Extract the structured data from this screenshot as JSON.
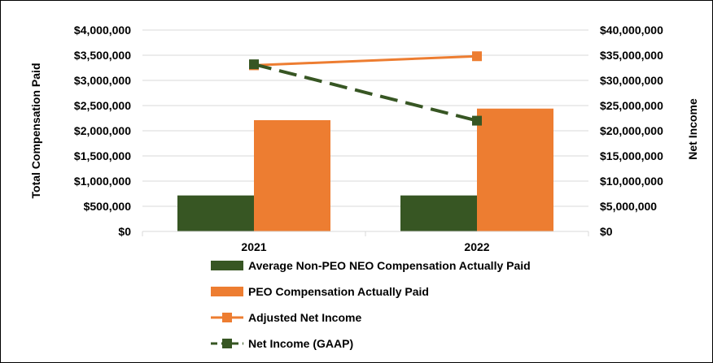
{
  "chart_data": {
    "type": "bar",
    "categories": [
      "2021",
      "2022"
    ],
    "series": [
      {
        "name": "Average Non-PEO NEO Compensation Actually Paid",
        "kind": "bar",
        "axis": "left",
        "color": "#375623",
        "values": [
          715000,
          715000
        ]
      },
      {
        "name": "PEO Compensation Actually Paid",
        "kind": "bar",
        "axis": "left",
        "color": "#ED7D31",
        "values": [
          2210000,
          2440000
        ]
      },
      {
        "name": "Adjusted Net Income",
        "kind": "line",
        "axis": "right",
        "color": "#ED7D31",
        "dash": "solid",
        "marker": "square",
        "values": [
          33000000,
          34800000
        ]
      },
      {
        "name": "Net Income (GAAP)",
        "kind": "line",
        "axis": "right",
        "color": "#375623",
        "dash": "dashed",
        "marker": "square",
        "values": [
          33200000,
          22000000
        ]
      }
    ],
    "ylabel": "Total Compensation Paid",
    "y2label": "Net Income",
    "ylim": [
      0,
      4000000
    ],
    "y2lim": [
      0,
      40000000
    ],
    "yticks": [
      "$0",
      "$500,000",
      "$1,000,000",
      "$1,500,000",
      "$2,000,000",
      "$2,500,000",
      "$3,000,000",
      "$3,500,000",
      "$4,000,000"
    ],
    "y2ticks": [
      "$0",
      "$5,000,000",
      "$10,000,000",
      "$15,000,000",
      "$20,000,000",
      "$25,000,000",
      "$30,000,000",
      "$35,000,000",
      "$40,000,000"
    ],
    "gridlines": true,
    "legend_position": "bottom"
  }
}
